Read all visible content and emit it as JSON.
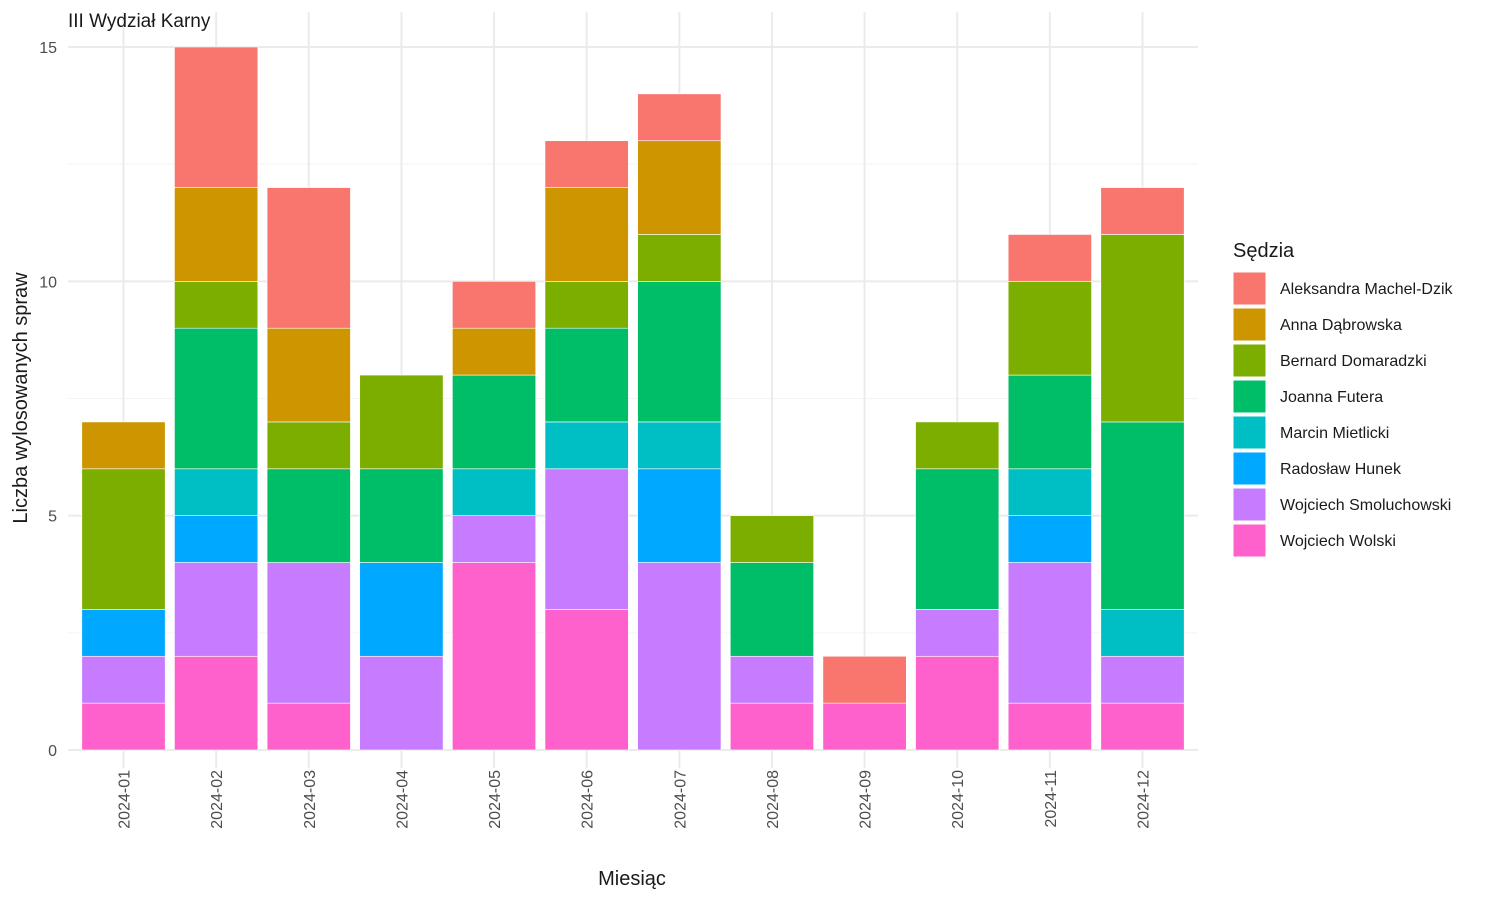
{
  "chart_data": {
    "type": "bar",
    "stacked": true,
    "title": "III Wydział Karny",
    "xlabel": "Miesiąc",
    "ylabel": "Liczba wylosowanych spraw",
    "ylim": [
      0,
      15
    ],
    "yticks": [
      0,
      5,
      10,
      15
    ],
    "grid": true,
    "legend_title": "Sędzia",
    "legend_position": "right",
    "categories": [
      "2024-01",
      "2024-02",
      "2024-03",
      "2024-04",
      "2024-05",
      "2024-06",
      "2024-07",
      "2024-08",
      "2024-09",
      "2024-10",
      "2024-11",
      "2024-12"
    ],
    "series": [
      {
        "name": "Wojciech Wolski",
        "color": "#FF61CC",
        "values": [
          1,
          2,
          1,
          0,
          4,
          3,
          0,
          1,
          1,
          2,
          1,
          1
        ]
      },
      {
        "name": "Wojciech Smoluchowski",
        "color": "#C77CFF",
        "values": [
          1,
          2,
          3,
          2,
          1,
          3,
          4,
          1,
          0,
          1,
          3,
          1
        ]
      },
      {
        "name": "Radosław Hunek",
        "color": "#00A9FF",
        "values": [
          1,
          1,
          0,
          2,
          0,
          0,
          2,
          0,
          0,
          0,
          1,
          0
        ]
      },
      {
        "name": "Marcin Mietlicki",
        "color": "#00BFC4",
        "values": [
          0,
          1,
          0,
          0,
          1,
          1,
          1,
          0,
          0,
          0,
          1,
          1
        ]
      },
      {
        "name": "Joanna Futera",
        "color": "#00BE67",
        "values": [
          0,
          3,
          2,
          2,
          2,
          2,
          3,
          2,
          0,
          3,
          2,
          4
        ]
      },
      {
        "name": "Bernard Domaradzki",
        "color": "#7CAE00",
        "values": [
          3,
          1,
          1,
          2,
          0,
          1,
          1,
          1,
          0,
          1,
          2,
          4
        ]
      },
      {
        "name": "Anna Dąbrowska",
        "color": "#CD9600",
        "values": [
          1,
          2,
          2,
          0,
          1,
          2,
          2,
          0,
          0,
          0,
          0,
          0
        ]
      },
      {
        "name": "Aleksandra Machel-Dzik",
        "color": "#F8766D",
        "values": [
          0,
          3,
          3,
          0,
          1,
          1,
          1,
          0,
          1,
          0,
          1,
          1
        ]
      }
    ],
    "legend_order": [
      "Aleksandra Machel-Dzik",
      "Anna Dąbrowska",
      "Bernard Domaradzki",
      "Joanna Futera",
      "Marcin Mietlicki",
      "Radosław Hunek",
      "Wojciech Smoluchowski",
      "Wojciech Wolski"
    ]
  }
}
